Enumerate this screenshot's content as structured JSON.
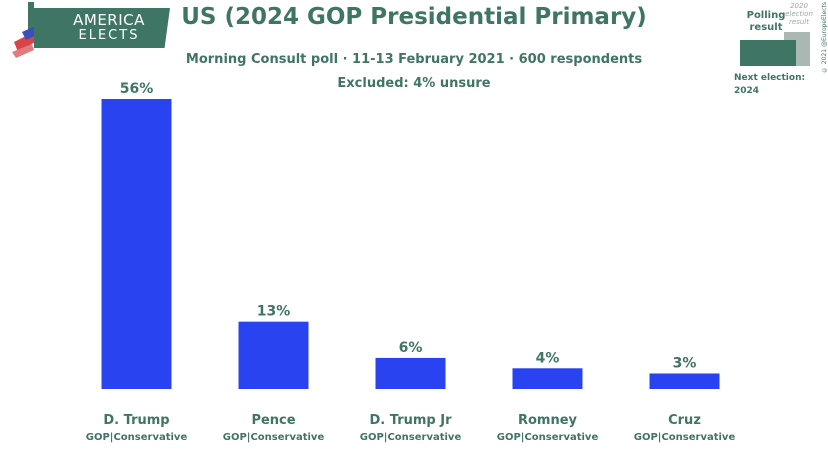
{
  "brand": {
    "line1": "AMERICA",
    "line2": "ELECTS"
  },
  "legend": {
    "polling_label": "Polling result",
    "previous_label": "2020 election result",
    "next_election_label": "Next election:",
    "next_election_year": "2024",
    "copyright": "© 2021 @EuropeElects",
    "polling_color": "#3f7565",
    "previous_color": "#aab8b3"
  },
  "colors": {
    "bar": "#2a43f0",
    "text": "#3f7565"
  },
  "chart_data": {
    "type": "bar",
    "title": "US (2024 GOP Presidential Primary)",
    "subtitle": "Morning Consult poll · 11-13 February 2021 · 600 respondents",
    "note": "Excluded: 4% unsure",
    "categories": [
      "D. Trump",
      "Pence",
      "D. Trump Jr",
      "Romney",
      "Cruz"
    ],
    "parties": [
      "GOP|Conservative",
      "GOP|Conservative",
      "GOP|Conservative",
      "GOP|Conservative",
      "GOP|Conservative"
    ],
    "values": [
      56,
      13,
      6,
      4,
      3
    ],
    "value_labels": [
      "56%",
      "13%",
      "6%",
      "4%",
      "3%"
    ],
    "xlabel": "",
    "ylabel": "",
    "ylim": [
      0,
      56
    ],
    "grid": false
  }
}
